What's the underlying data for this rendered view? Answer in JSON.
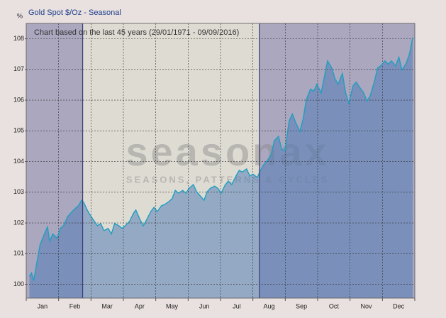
{
  "chart_data": {
    "type": "line",
    "title": "Gold Spot   $/Oz - Seasonal",
    "y_label": "%",
    "annotation": "Chart based on the last 45 years (29/01/1971 - 09/09/2016)",
    "watermark": "seasonax",
    "watermark_subtitle": "SEASONS, PATTERNS & CYCLES",
    "categories": [
      "Jan",
      "Feb",
      "Mar",
      "Apr",
      "May",
      "Jun",
      "Jul",
      "Aug",
      "Sep",
      "Oct",
      "Nov",
      "Dec"
    ],
    "xlim": [
      0,
      365
    ],
    "ylim": [
      99.55,
      108.5
    ],
    "yticks": [
      100,
      101,
      102,
      103,
      104,
      105,
      106,
      107,
      108
    ],
    "grid": true,
    "highlight": {
      "start": 53,
      "end": 219,
      "color": "#dedbd3"
    },
    "background_color": "#aaa7bf",
    "area_color": "#4a78b5",
    "series": [
      {
        "color": "#1f9fc0",
        "x": [
          3,
          5,
          7,
          10,
          13,
          17,
          20,
          22,
          25,
          29,
          32,
          35,
          39,
          42,
          45,
          49,
          52,
          54,
          57,
          60,
          63,
          67,
          70,
          73,
          77,
          80,
          83,
          87,
          90,
          93,
          97,
          101,
          103,
          107,
          110,
          113,
          117,
          120,
          123,
          127,
          130,
          133,
          137,
          140,
          143,
          147,
          150,
          153,
          157,
          160,
          163,
          167,
          170,
          173,
          177,
          180,
          183,
          187,
          190,
          193,
          197,
          200,
          203,
          207,
          210,
          213,
          217,
          220,
          223,
          227,
          230,
          233,
          237,
          240,
          243,
          247,
          250,
          253,
          257,
          260,
          263,
          267,
          270,
          273,
          277,
          280,
          283,
          287,
          290,
          293,
          297,
          300,
          303,
          307,
          310,
          313,
          317,
          320,
          323,
          327,
          330,
          333,
          337,
          340,
          343,
          347,
          350,
          353,
          357,
          360,
          363
        ],
        "values": [
          100.25,
          100.37,
          100.12,
          100.71,
          101.29,
          101.64,
          101.87,
          101.41,
          101.64,
          101.5,
          101.82,
          101.91,
          102.21,
          102.33,
          102.44,
          102.56,
          102.74,
          102.67,
          102.44,
          102.26,
          102.1,
          101.91,
          101.98,
          101.75,
          101.82,
          101.64,
          101.98,
          101.91,
          101.82,
          101.91,
          102.05,
          102.33,
          102.42,
          102.1,
          101.91,
          102.1,
          102.37,
          102.51,
          102.37,
          102.56,
          102.6,
          102.67,
          102.79,
          103.06,
          102.97,
          103.06,
          102.97,
          103.13,
          103.25,
          103.02,
          102.9,
          102.74,
          103.02,
          103.13,
          103.2,
          103.13,
          102.97,
          103.25,
          103.36,
          103.25,
          103.53,
          103.71,
          103.66,
          103.76,
          103.53,
          103.59,
          103.48,
          103.71,
          103.89,
          104.06,
          104.22,
          104.68,
          104.82,
          104.4,
          104.35,
          105.32,
          105.55,
          105.28,
          104.98,
          105.37,
          106.01,
          106.36,
          106.29,
          106.52,
          106.24,
          106.75,
          107.28,
          107.05,
          106.7,
          106.52,
          106.87,
          106.24,
          105.9,
          106.47,
          106.59,
          106.43,
          106.24,
          105.97,
          106.13,
          106.59,
          107.05,
          107.12,
          107.28,
          107.17,
          107.28,
          107.12,
          107.4,
          106.98,
          107.21,
          107.51,
          108.04
        ]
      }
    ]
  }
}
